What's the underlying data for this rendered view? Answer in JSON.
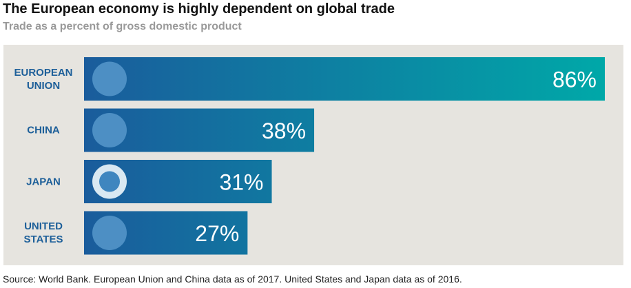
{
  "chart_data": {
    "type": "bar",
    "title": "The European economy is highly dependent on global trade",
    "subtitle": "Trade as a percent of gross domestic product",
    "categories": [
      "EUROPEAN UNION",
      "CHINA",
      "JAPAN",
      "UNITED STATES"
    ],
    "values": [
      86,
      38,
      31,
      27
    ],
    "value_labels": [
      "86%",
      "38%",
      "31%",
      "27%"
    ],
    "colors": [
      "#1a5c9c",
      "#00a8a8"
    ],
    "source": "Source: World Bank. European Union and China data as of 2017. United States and Japan data as of 2016."
  }
}
